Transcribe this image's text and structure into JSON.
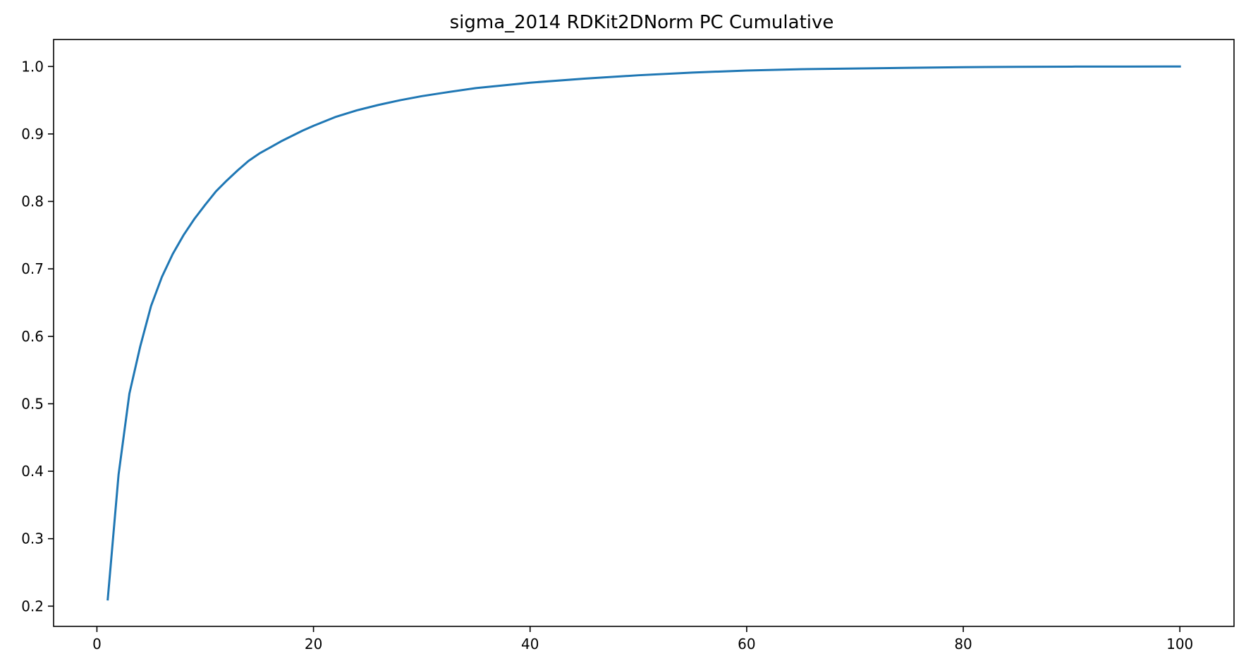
{
  "chart_data": {
    "type": "line",
    "title": "sigma_2014 RDKit2DNorm PC Cumulative",
    "xlabel": "",
    "ylabel": "",
    "xlim": [
      -4,
      105
    ],
    "ylim": [
      0.17,
      1.04
    ],
    "x_ticks": [
      0,
      20,
      40,
      60,
      80,
      100
    ],
    "x_tick_labels": [
      "0",
      "20",
      "40",
      "60",
      "80",
      "100"
    ],
    "y_ticks": [
      0.2,
      0.3,
      0.4,
      0.5,
      0.6,
      0.7,
      0.8,
      0.9,
      1.0
    ],
    "y_tick_labels": [
      "0.2",
      "0.3",
      "0.4",
      "0.5",
      "0.6",
      "0.7",
      "0.8",
      "0.9",
      "1.0"
    ],
    "grid": false,
    "colors": {
      "line": "#1f77b4",
      "axes": "#000000",
      "background": "#ffffff"
    },
    "series": [
      {
        "x": [
          1,
          2,
          3,
          4,
          5,
          6,
          7,
          8,
          9,
          10,
          11,
          12,
          13,
          14,
          15,
          16,
          17,
          18,
          19,
          20,
          22,
          24,
          26,
          28,
          30,
          32,
          35,
          40,
          45,
          50,
          55,
          60,
          65,
          70,
          75,
          80,
          85,
          90,
          95,
          100
        ],
        "y": [
          0.21,
          0.395,
          0.515,
          0.585,
          0.645,
          0.688,
          0.722,
          0.75,
          0.774,
          0.795,
          0.815,
          0.831,
          0.846,
          0.86,
          0.871,
          0.88,
          0.889,
          0.897,
          0.905,
          0.912,
          0.925,
          0.935,
          0.943,
          0.95,
          0.956,
          0.961,
          0.968,
          0.976,
          0.982,
          0.987,
          0.991,
          0.994,
          0.996,
          0.997,
          0.998,
          0.999,
          0.9995,
          0.9998,
          0.9999,
          1.0
        ]
      }
    ]
  }
}
